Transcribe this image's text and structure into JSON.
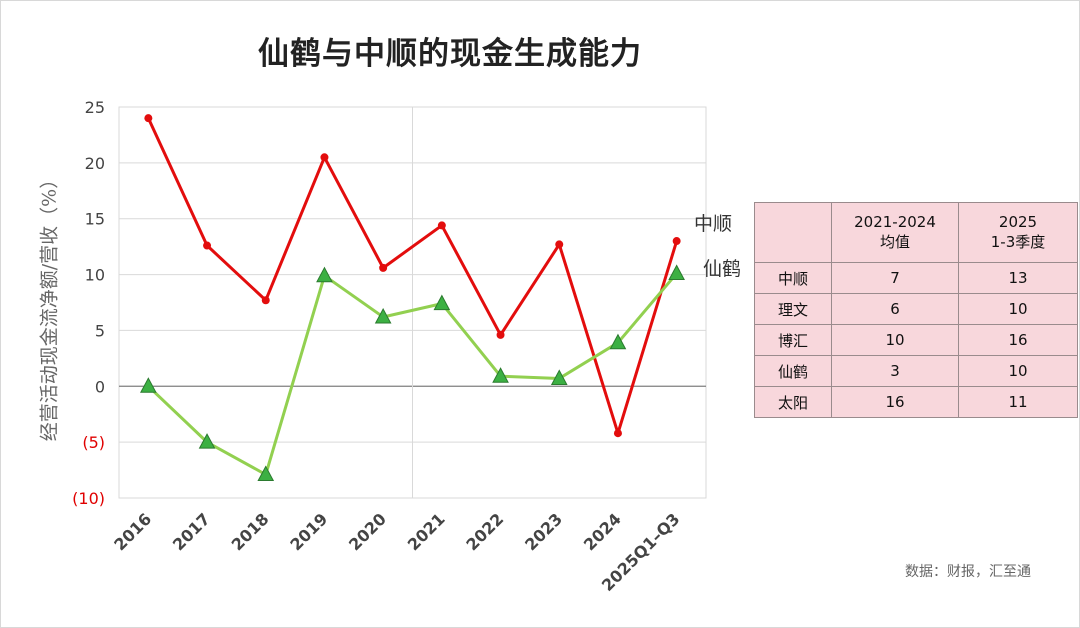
{
  "title": "仙鹤与中顺的现金生成能力",
  "source_note": "数据：财报，汇至通",
  "chart_data": {
    "type": "line",
    "title": "仙鹤与中顺的现金生成能力",
    "ylabel": "经营活动现金流净额/营收（%）",
    "xlabel": "",
    "categories": [
      "2016",
      "2017",
      "2018",
      "2019",
      "2020",
      "2021",
      "2022",
      "2023",
      "2024",
      "2025Q1–Q3"
    ],
    "y_ticks": [
      {
        "value": 25,
        "label": "25"
      },
      {
        "value": 20,
        "label": "20"
      },
      {
        "value": 15,
        "label": "15"
      },
      {
        "value": 10,
        "label": "10"
      },
      {
        "value": 5,
        "label": "5"
      },
      {
        "value": 0,
        "label": "0"
      },
      {
        "value": -5,
        "label": "(5)"
      },
      {
        "value": -10,
        "label": "(10)"
      }
    ],
    "ylim": [
      -10,
      25
    ],
    "grid": true,
    "negative_tick_color": "#e00000",
    "series": [
      {
        "name": "中顺",
        "color": "#e30d0d",
        "marker": "circle",
        "values": [
          24.0,
          12.6,
          7.7,
          20.5,
          10.6,
          14.4,
          4.6,
          12.7,
          -4.2,
          13.0
        ]
      },
      {
        "name": "仙鹤",
        "color": "#92d050",
        "marker": "triangle",
        "values": [
          0.0,
          -5.0,
          -7.9,
          9.9,
          6.2,
          7.4,
          0.9,
          0.7,
          3.9,
          10.1
        ]
      }
    ]
  },
  "table": {
    "headers": [
      {
        "line1": "",
        "line2": ""
      },
      {
        "line1": "2021-2024",
        "line2": "均值"
      },
      {
        "line1": "2025",
        "line2": "1-3季度"
      }
    ],
    "rows": [
      {
        "company": "中顺",
        "avg": "7",
        "ytd": "13"
      },
      {
        "company": "理文",
        "avg": "6",
        "ytd": "10"
      },
      {
        "company": "博汇",
        "avg": "10",
        "ytd": "16"
      },
      {
        "company": "仙鹤",
        "avg": "3",
        "ytd": "10"
      },
      {
        "company": "太阳",
        "avg": "16",
        "ytd": "11"
      }
    ]
  }
}
